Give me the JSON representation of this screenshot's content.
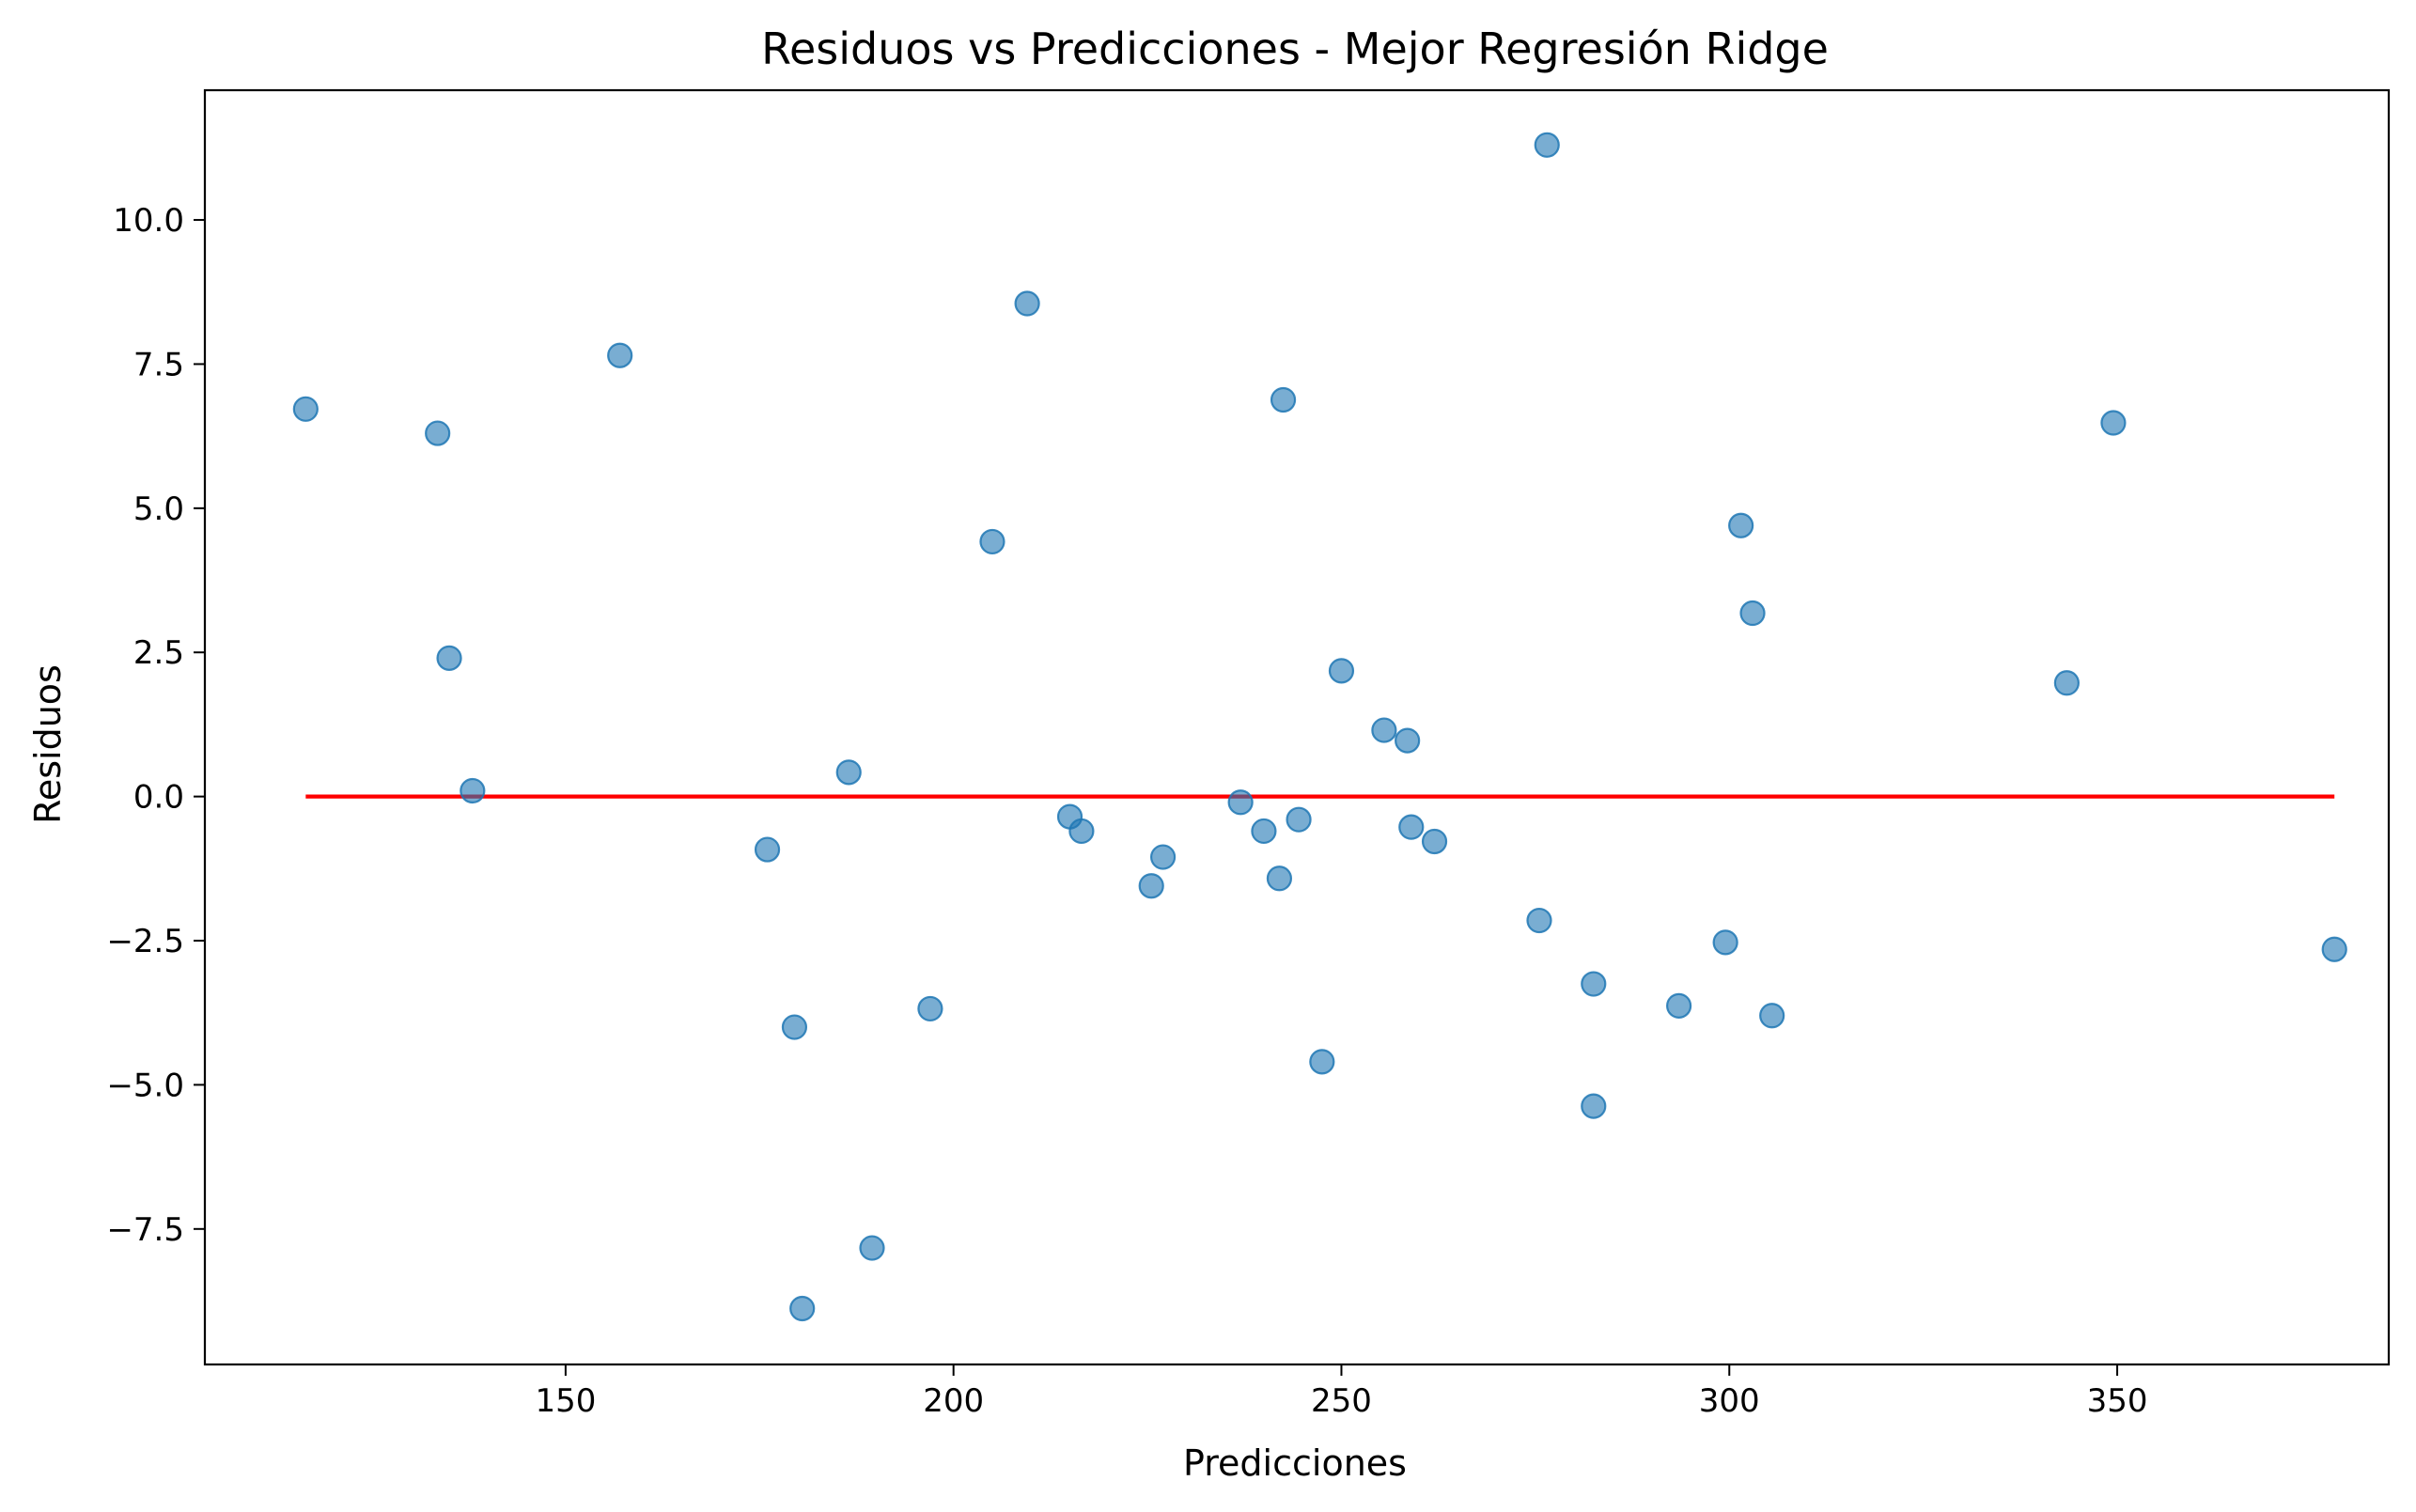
{
  "chart_data": {
    "type": "scatter",
    "title": "Residuos vs Predicciones - Mejor Regresión Ridge",
    "xlabel": "Predicciones",
    "ylabel": "Residuos",
    "xlim": [
      103.5,
      385.0
    ],
    "ylim": [
      -9.85,
      12.25
    ],
    "xticks": [
      150,
      200,
      250,
      300,
      350
    ],
    "xtick_labels": [
      "150",
      "200",
      "250",
      "300",
      "350"
    ],
    "yticks": [
      -7.5,
      -5.0,
      -2.5,
      0.0,
      2.5,
      5.0,
      7.5,
      10.0
    ],
    "ytick_labels": [
      "−7.5",
      "−5.0",
      "−2.5",
      "0.0",
      "2.5",
      "5.0",
      "7.5",
      "10.0"
    ],
    "grid": false,
    "colors": {
      "points": "#1f77b4",
      "reference_line": "#ff0000"
    },
    "reference_line": {
      "y": 0.0,
      "x_start": 116.5,
      "x_end": 378.0
    },
    "points": [
      {
        "x": 116.5,
        "y": 6.72
      },
      {
        "x": 133.5,
        "y": 6.3
      },
      {
        "x": 135.0,
        "y": 2.4
      },
      {
        "x": 138.0,
        "y": 0.1
      },
      {
        "x": 157.0,
        "y": 7.65
      },
      {
        "x": 176.0,
        "y": -0.92
      },
      {
        "x": 179.5,
        "y": -4.0
      },
      {
        "x": 180.5,
        "y": -8.88
      },
      {
        "x": 186.5,
        "y": 0.42
      },
      {
        "x": 189.5,
        "y": -7.83
      },
      {
        "x": 197.0,
        "y": -3.68
      },
      {
        "x": 205.0,
        "y": 4.42
      },
      {
        "x": 209.5,
        "y": 8.55
      },
      {
        "x": 215.0,
        "y": -0.35
      },
      {
        "x": 216.5,
        "y": -0.6
      },
      {
        "x": 225.5,
        "y": -1.55
      },
      {
        "x": 227.0,
        "y": -1.05
      },
      {
        "x": 237.0,
        "y": -0.1
      },
      {
        "x": 240.0,
        "y": -0.6
      },
      {
        "x": 242.0,
        "y": -1.42
      },
      {
        "x": 242.5,
        "y": 6.88
      },
      {
        "x": 244.5,
        "y": -0.4
      },
      {
        "x": 247.5,
        "y": -4.6
      },
      {
        "x": 250.0,
        "y": 2.18
      },
      {
        "x": 255.5,
        "y": 1.15
      },
      {
        "x": 258.5,
        "y": 0.97
      },
      {
        "x": 259.0,
        "y": -0.53
      },
      {
        "x": 262.0,
        "y": -0.78
      },
      {
        "x": 275.5,
        "y": -2.15
      },
      {
        "x": 276.5,
        "y": 11.3
      },
      {
        "x": 282.5,
        "y": -3.25
      },
      {
        "x": 282.5,
        "y": -5.37
      },
      {
        "x": 293.5,
        "y": -3.63
      },
      {
        "x": 299.5,
        "y": -2.53
      },
      {
        "x": 301.5,
        "y": 4.7
      },
      {
        "x": 303.0,
        "y": 3.18
      },
      {
        "x": 305.5,
        "y": -3.8
      },
      {
        "x": 343.5,
        "y": 1.97
      },
      {
        "x": 349.5,
        "y": 6.48
      },
      {
        "x": 378.0,
        "y": -2.65
      }
    ]
  }
}
